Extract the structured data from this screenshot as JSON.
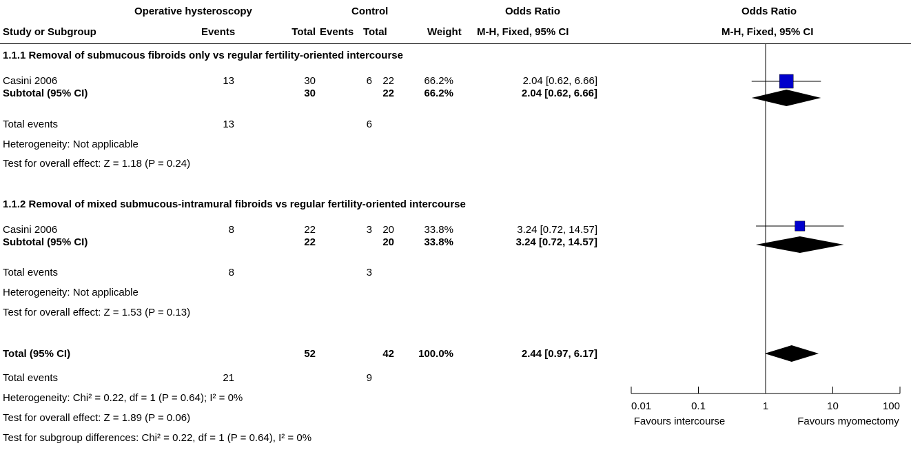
{
  "header": {
    "group1": "Operative hysteroscopy",
    "group2": "Control",
    "or_text": "Odds Ratio",
    "or_plot": "Odds Ratio",
    "col_study": "Study or Subgroup",
    "col_events1": "Events",
    "col_total1": "Total",
    "col_events2": "Events",
    "col_total2": "Total",
    "col_weight": "Weight",
    "col_method_text": "M-H, Fixed, 95% CI",
    "col_method_plot": "M-H, Fixed, 95% CI"
  },
  "subgroups": [
    {
      "title": "1.1.1 Removal of submucous fibroids only vs regular fertility-oriented intercourse",
      "study": {
        "name": "Casini 2006",
        "e1": "13",
        "t1": "30",
        "e2": "6",
        "t2": "22",
        "weight": "66.2%",
        "ci": "2.04 [0.62, 6.66]"
      },
      "subtotal": {
        "label": "Subtotal (95% CI)",
        "t1": "30",
        "t2": "22",
        "weight": "66.2%",
        "ci": "2.04 [0.62, 6.66]"
      },
      "total_events": {
        "label": "Total events",
        "e1": "13",
        "e2": "6"
      },
      "heterogeneity": "Heterogeneity: Not applicable",
      "overall": "Test for overall effect: Z = 1.18 (P = 0.24)"
    },
    {
      "title": "1.1.2 Removal of mixed submucous-intramural fibroids vs regular fertility-oriented intercourse",
      "study": {
        "name": "Casini 2006",
        "e1": "8",
        "t1": "22",
        "e2": "3",
        "t2": "20",
        "weight": "33.8%",
        "ci": "3.24 [0.72, 14.57]"
      },
      "subtotal": {
        "label": "Subtotal (95% CI)",
        "t1": "22",
        "t2": "20",
        "weight": "33.8%",
        "ci": "3.24 [0.72, 14.57]"
      },
      "total_events": {
        "label": "Total events",
        "e1": "8",
        "e2": "3"
      },
      "heterogeneity": "Heterogeneity: Not applicable",
      "overall": "Test for overall effect: Z = 1.53 (P = 0.13)"
    }
  ],
  "total": {
    "label": "Total (95% CI)",
    "t1": "52",
    "t2": "42",
    "weight": "100.0%",
    "ci": "2.44 [0.97, 6.17]",
    "events_label": "Total events",
    "e1": "21",
    "e2": "9",
    "heterogeneity": "Heterogeneity: Chi² = 0.22, df = 1 (P = 0.64); I² = 0%",
    "overall": "Test for overall effect: Z = 1.89 (P = 0.06)",
    "subgroup_diff": "Test for subgroup differences: Chi² = 0.22, df = 1 (P = 0.64), I² = 0%"
  },
  "chart_data": {
    "type": "forest",
    "scale": "log",
    "xlim": [
      0.01,
      100
    ],
    "ticks": [
      0.01,
      0.1,
      1,
      10,
      100
    ],
    "tick_labels": [
      "0.01",
      "0.1",
      "1",
      "10",
      "100"
    ],
    "favours_left": "Favours intercourse",
    "favours_right": "Favours myomectomy",
    "study_color": "#0000cc",
    "diamond_color": "#000000",
    "studies": [
      {
        "or": 2.04,
        "lo": 0.62,
        "hi": 6.66,
        "weight": 66.2
      },
      {
        "or": 3.24,
        "lo": 0.72,
        "hi": 14.57,
        "weight": 33.8
      }
    ],
    "diamonds": [
      {
        "or": 2.04,
        "lo": 0.62,
        "hi": 6.66
      },
      {
        "or": 3.24,
        "lo": 0.72,
        "hi": 14.57
      },
      {
        "or": 2.44,
        "lo": 0.97,
        "hi": 6.17
      }
    ]
  }
}
